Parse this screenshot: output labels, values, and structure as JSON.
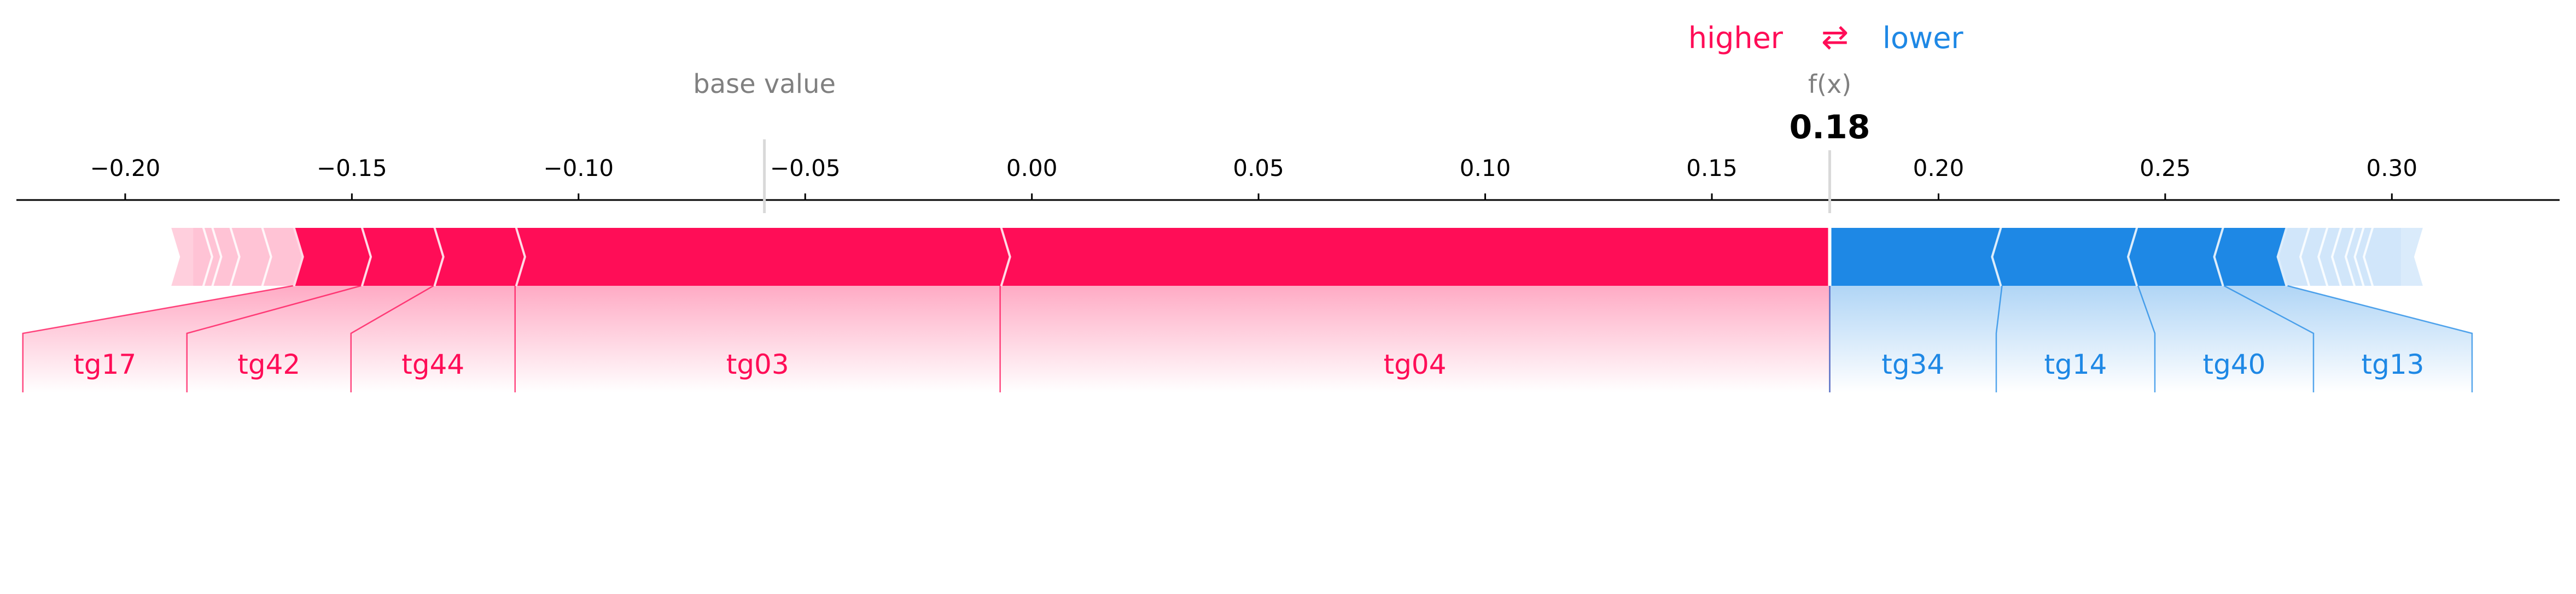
{
  "legend": {
    "higher_label": "higher",
    "lower_label": "lower",
    "arrow_glyph": "⇄"
  },
  "chart_data": {
    "type": "force-plot",
    "base_value": -0.059,
    "base_value_label": "base value",
    "output_value": 0.176,
    "output_label": "f(x)",
    "output_value_text": "0.18",
    "xlim": [
      -0.224,
      0.337
    ],
    "ticks": [
      -0.2,
      -0.15,
      -0.1,
      -0.05,
      0.0,
      0.05,
      0.1,
      0.15,
      0.2,
      0.25,
      0.3
    ],
    "tick_labels": [
      "−0.20",
      "−0.15",
      "−0.10",
      "−0.05",
      "0.00",
      "0.05",
      "0.10",
      "0.15",
      "0.20",
      "0.25",
      "0.30"
    ],
    "positive_segments": [
      {
        "name": "tg04",
        "start": -0.007,
        "end": 0.176,
        "labeled": true
      },
      {
        "name": "tg03",
        "start": -0.114,
        "end": -0.007,
        "labeled": true
      },
      {
        "name": "tg44",
        "start": -0.132,
        "end": -0.114,
        "labeled": true
      },
      {
        "name": "tg42",
        "start": -0.148,
        "end": -0.132,
        "labeled": true
      },
      {
        "name": "tg17",
        "start": -0.163,
        "end": -0.148,
        "labeled": true
      },
      {
        "name": "",
        "start": -0.17,
        "end": -0.163,
        "labeled": false
      },
      {
        "name": "",
        "start": -0.177,
        "end": -0.17,
        "labeled": false
      },
      {
        "name": "",
        "start": -0.181,
        "end": -0.177,
        "labeled": false
      },
      {
        "name": "",
        "start": -0.183,
        "end": -0.181,
        "labeled": false
      },
      {
        "name": "",
        "start": -0.185,
        "end": -0.183,
        "labeled": false
      }
    ],
    "negative_segments": [
      {
        "name": "tg34",
        "start": 0.176,
        "end": 0.214,
        "labeled": true
      },
      {
        "name": "tg14",
        "start": 0.214,
        "end": 0.244,
        "labeled": true
      },
      {
        "name": "tg40",
        "start": 0.244,
        "end": 0.263,
        "labeled": true
      },
      {
        "name": "tg13",
        "start": 0.263,
        "end": 0.277,
        "labeled": true
      },
      {
        "name": "",
        "start": 0.277,
        "end": 0.282,
        "labeled": false
      },
      {
        "name": "",
        "start": 0.282,
        "end": 0.286,
        "labeled": false
      },
      {
        "name": "",
        "start": 0.286,
        "end": 0.289,
        "labeled": false
      },
      {
        "name": "",
        "start": 0.289,
        "end": 0.292,
        "labeled": false
      },
      {
        "name": "",
        "start": 0.292,
        "end": 0.294,
        "labeled": false
      },
      {
        "name": "",
        "start": 0.294,
        "end": 0.296,
        "labeled": false
      },
      {
        "name": "",
        "start": 0.296,
        "end": 0.302,
        "labeled": false
      }
    ]
  },
  "colors": {
    "positive": "#ff0d57",
    "negative": "#1e88e5",
    "positive_light": "#ffc3d5",
    "negative_light": "#d1e6fa",
    "text_gray": "#808080",
    "axis": "#000000"
  }
}
